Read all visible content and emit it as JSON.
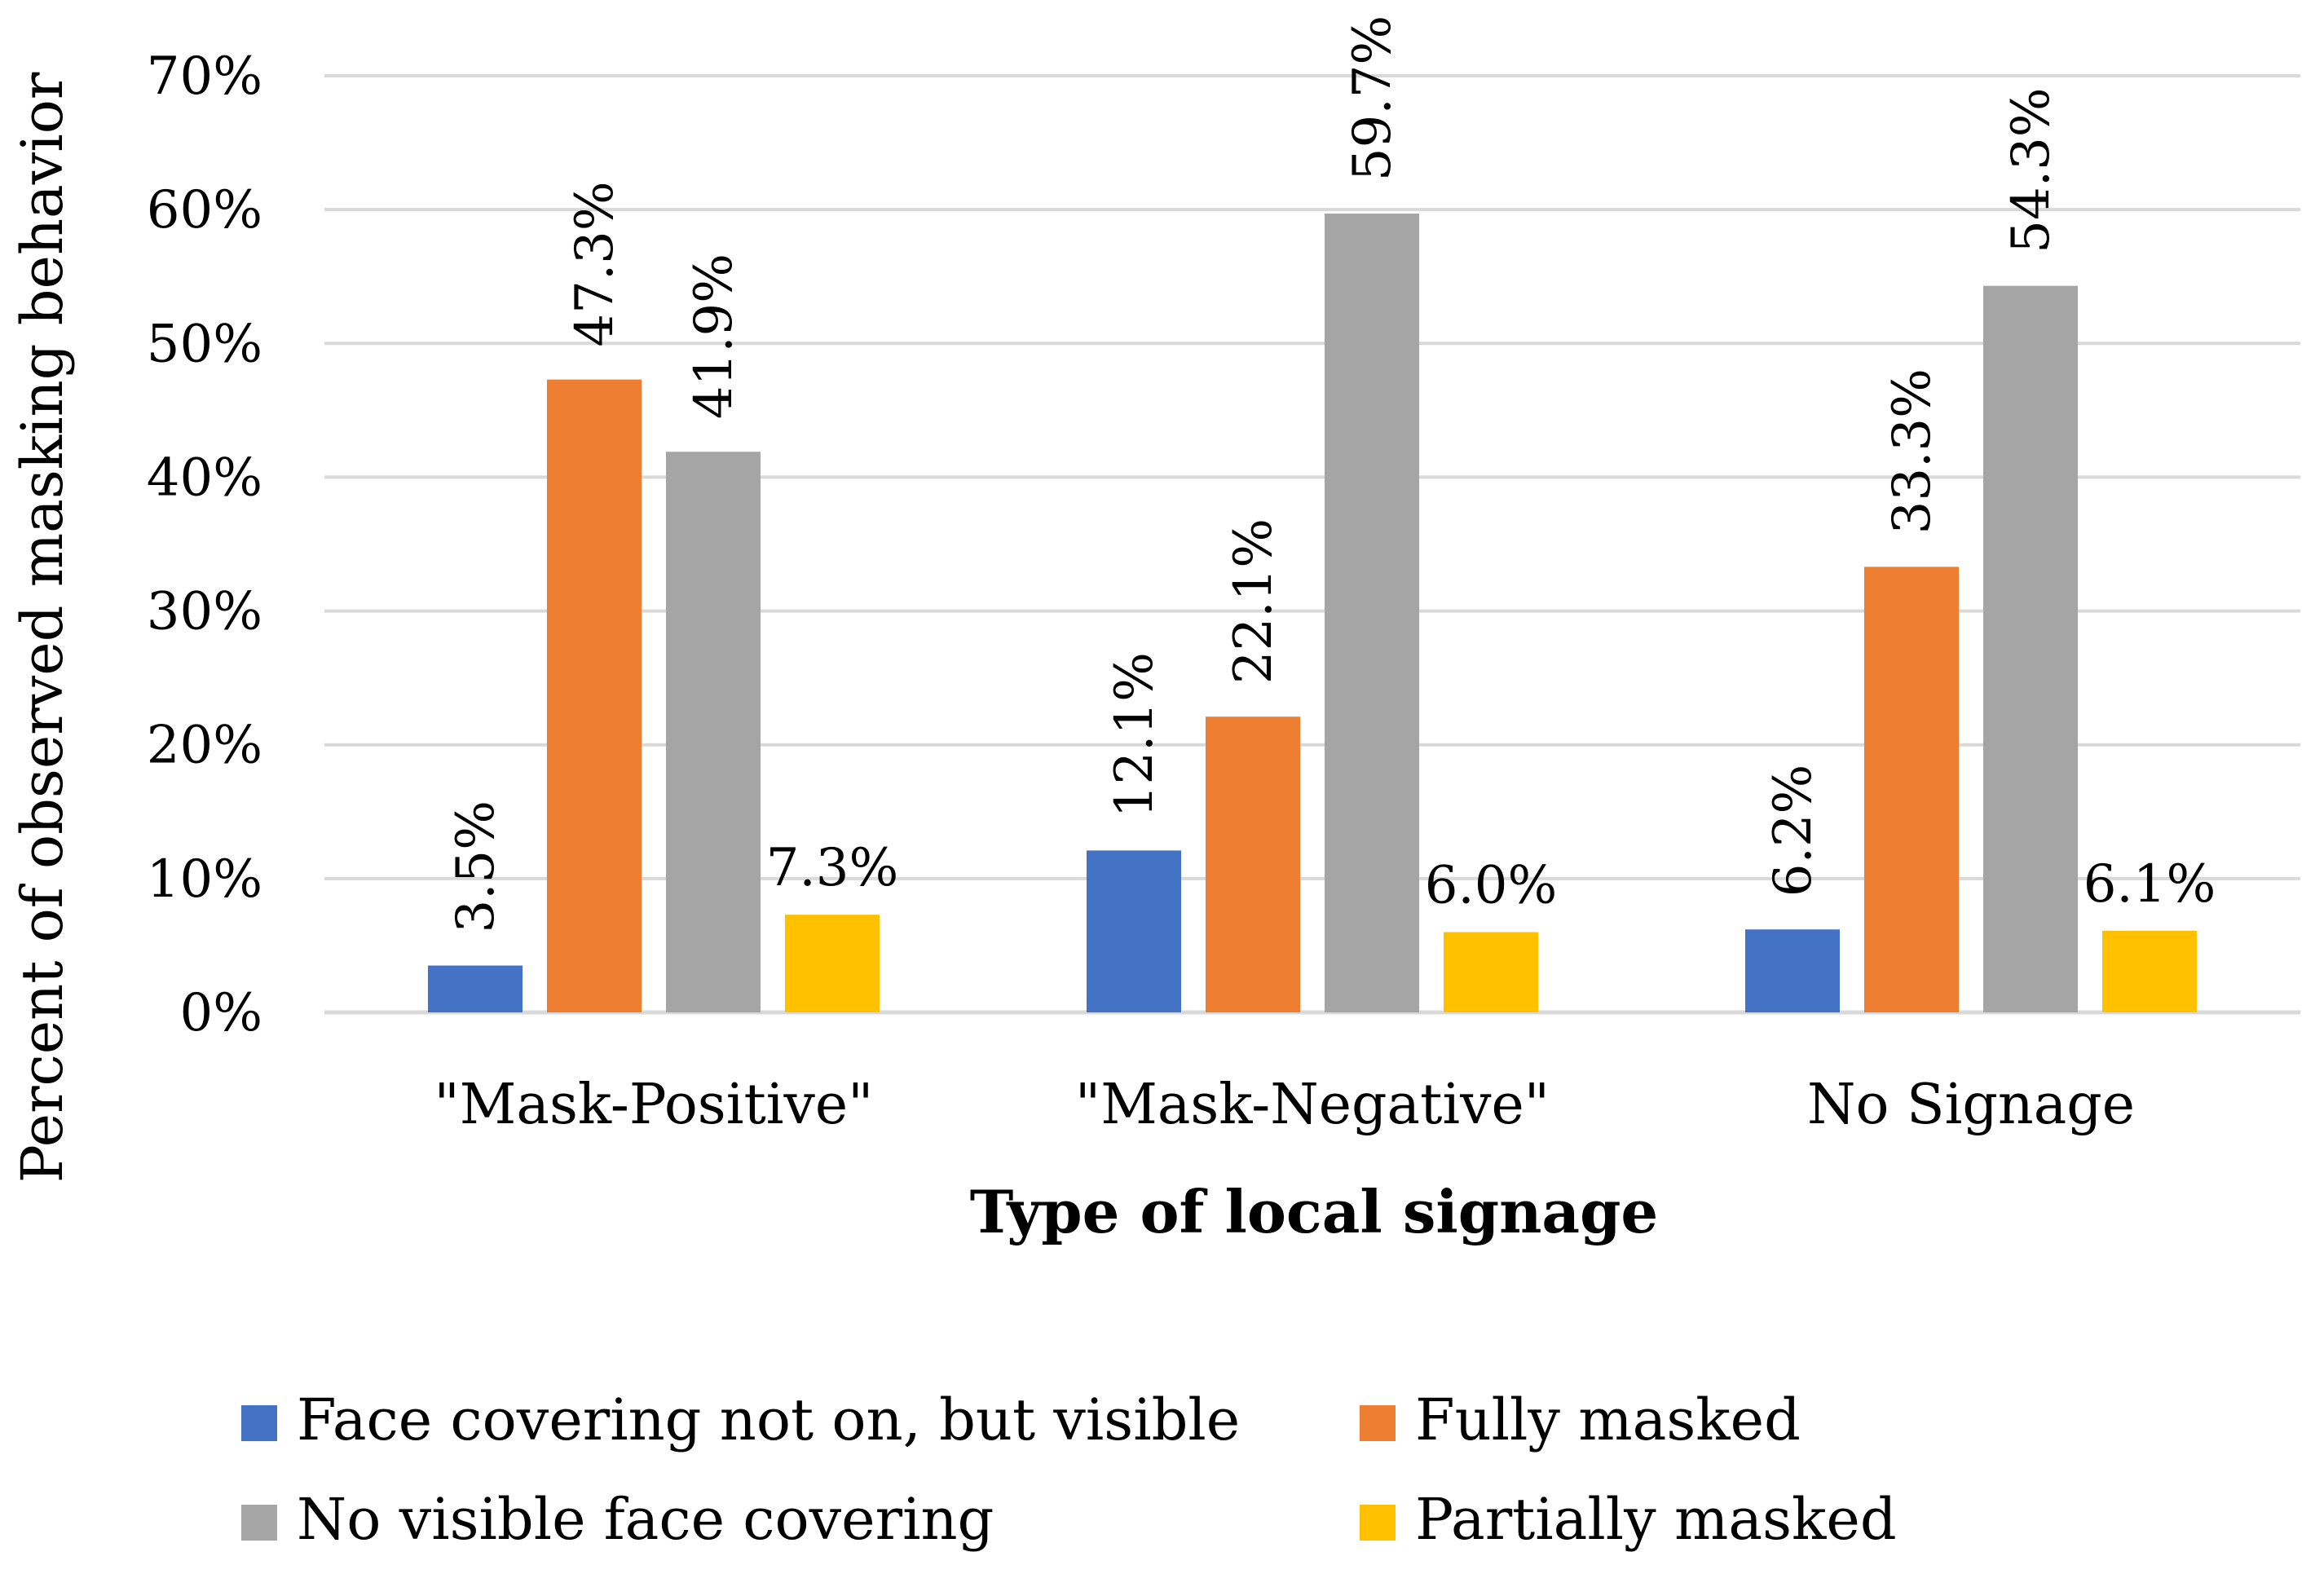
{
  "chart_data": {
    "type": "bar",
    "title": "",
    "xlabel": "Type of local signage",
    "ylabel": "Percent of observed masking behavior",
    "ylim": [
      0,
      70
    ],
    "yticks": [
      "0%",
      "10%",
      "20%",
      "30%",
      "40%",
      "50%",
      "60%",
      "70%"
    ],
    "grid": true,
    "legend_position": "bottom",
    "categories": [
      "\"Mask-Positive\"",
      "\"Mask-Negative\"",
      "No Signage"
    ],
    "series": [
      {
        "name": "Face covering not on, but visible",
        "color": "#4472c4",
        "values": [
          3.5,
          12.1,
          6.2
        ],
        "labels": [
          "3.5%",
          "12.1%",
          "6.2%"
        ],
        "label_rotated": [
          true,
          true,
          true
        ]
      },
      {
        "name": "Fully masked",
        "color": "#ed7d31",
        "values": [
          47.3,
          22.1,
          33.3
        ],
        "labels": [
          "47.3%",
          "22.1%",
          "33.3%"
        ],
        "label_rotated": [
          true,
          true,
          true
        ]
      },
      {
        "name": "No visible face covering",
        "color": "#a5a5a5",
        "values": [
          41.9,
          59.7,
          54.3
        ],
        "labels": [
          "41.9%",
          "59.7%",
          "54.3%"
        ],
        "label_rotated": [
          true,
          true,
          true
        ]
      },
      {
        "name": "Partially masked",
        "color": "#ffc000",
        "values": [
          7.3,
          6.0,
          6.1
        ],
        "labels": [
          "7.3%",
          "6.0%",
          "6.1%"
        ],
        "label_rotated": [
          false,
          false,
          false
        ]
      }
    ]
  }
}
